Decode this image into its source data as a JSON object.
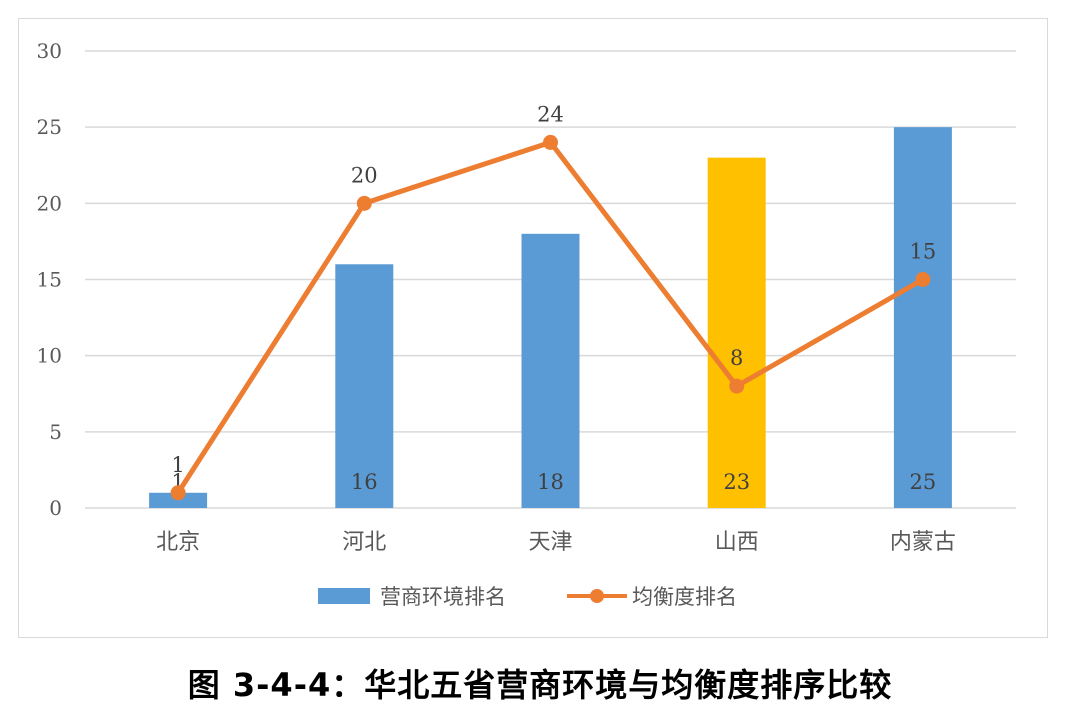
{
  "caption": "图 3-4-4：华北五省营商环境与均衡度排序比较",
  "colors": {
    "bar": "#5b9bd5",
    "bar_highlight": "#ffc000",
    "line": "#ed7d31",
    "grid": "#d9d9d9"
  },
  "chart_data": {
    "type": "bar",
    "categories": [
      "北京",
      "河北",
      "天津",
      "山西",
      "内蒙古"
    ],
    "ylim": [
      0,
      30
    ],
    "yticks": [
      "0",
      "5",
      "10",
      "15",
      "20",
      "25",
      "30"
    ],
    "grid": true,
    "legend_position": "bottom",
    "series": [
      {
        "name": "营商环境排名",
        "type": "bar",
        "values": [
          1,
          16,
          18,
          23,
          25
        ],
        "labels": [
          "1",
          "16",
          "18",
          "23",
          "25"
        ],
        "highlight_index": 3
      },
      {
        "name": "均衡度排名",
        "type": "line",
        "values": [
          1,
          20,
          24,
          8,
          15
        ],
        "labels": [
          "1",
          "20",
          "24",
          "8",
          "15"
        ]
      }
    ]
  }
}
